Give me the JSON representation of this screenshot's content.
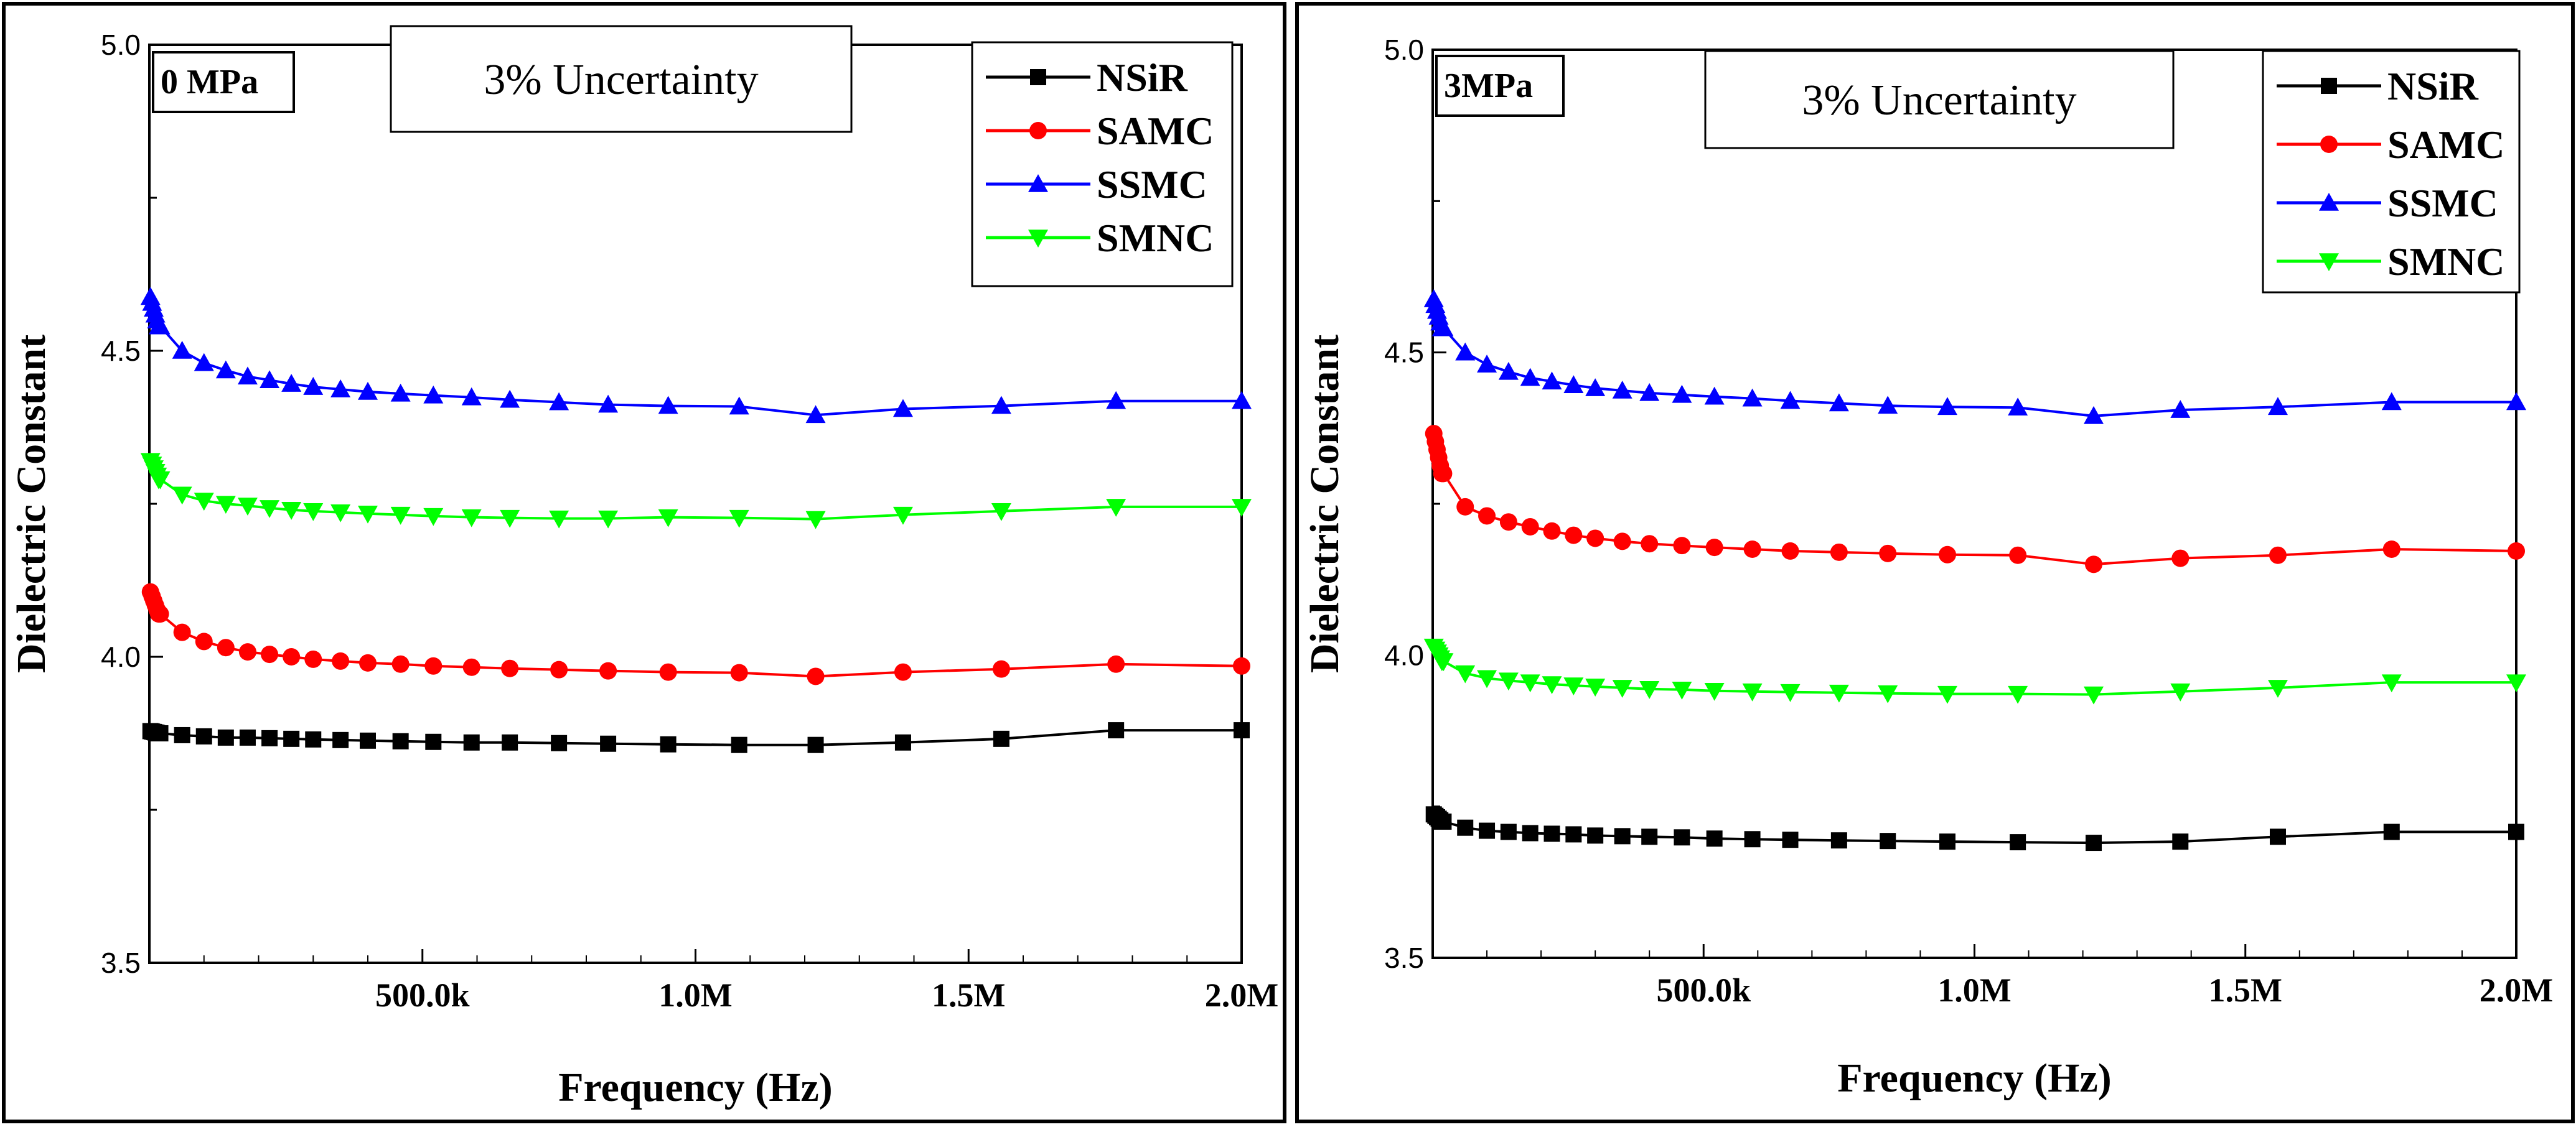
{
  "colors": {
    "NSiR": "#000000",
    "SAMC": "#ff0000",
    "SSMC": "#0000ff",
    "SMNC": "#00ff00"
  },
  "chart_data": [
    {
      "type": "line",
      "title": "0 MPa",
      "annotation": "3% Uncertainty",
      "xlabel": "Frequency (Hz)",
      "ylabel": "Dielectric Constant",
      "xlim": [
        0,
        2000000
      ],
      "ylim": [
        3.5,
        5.0
      ],
      "x_ticks": [
        500000,
        1000000,
        1500000,
        2000000
      ],
      "x_tick_labels": [
        "500.0k",
        "1.0M",
        "1.5M",
        "2.0M"
      ],
      "y_ticks": [
        3.5,
        4.0,
        4.5,
        5.0
      ],
      "y_tick_labels": [
        "3.5",
        "4.0",
        "4.5",
        "5.0"
      ],
      "legend_position": "top-right",
      "x": [
        20000,
        60000,
        100000,
        140000,
        180000,
        220000,
        260000,
        300000,
        350000,
        400000,
        460000,
        520000,
        590000,
        660000,
        750000,
        840000,
        950000,
        1080000,
        1220000,
        1380000,
        1560000,
        1770000,
        2000000
      ],
      "series": [
        {
          "name": "NSiR",
          "marker": "square",
          "values": [
            3.875,
            3.872,
            3.87,
            3.868,
            3.868,
            3.867,
            3.866,
            3.865,
            3.864,
            3.863,
            3.862,
            3.861,
            3.86,
            3.86,
            3.859,
            3.858,
            3.857,
            3.856,
            3.856,
            3.86,
            3.866,
            3.88,
            3.88
          ]
        },
        {
          "name": "SAMC",
          "marker": "circle",
          "values": [
            4.07,
            4.04,
            4.025,
            4.015,
            4.008,
            4.004,
            4.0,
            3.996,
            3.993,
            3.99,
            3.988,
            3.985,
            3.983,
            3.981,
            3.979,
            3.977,
            3.975,
            3.974,
            3.968,
            3.975,
            3.98,
            3.988,
            3.985
          ]
        },
        {
          "name": "SSMC",
          "marker": "triangle-up",
          "values": [
            4.54,
            4.5,
            4.48,
            4.468,
            4.458,
            4.452,
            4.446,
            4.441,
            4.437,
            4.433,
            4.43,
            4.427,
            4.424,
            4.42,
            4.416,
            4.412,
            4.41,
            4.409,
            4.395,
            4.405,
            4.41,
            4.418,
            4.418
          ]
        },
        {
          "name": "SMNC",
          "marker": "triangle-down",
          "values": [
            4.29,
            4.265,
            4.255,
            4.25,
            4.247,
            4.243,
            4.24,
            4.238,
            4.236,
            4.234,
            4.232,
            4.23,
            4.228,
            4.227,
            4.226,
            4.226,
            4.228,
            4.227,
            4.225,
            4.232,
            4.238,
            4.245,
            4.245
          ]
        }
      ]
    },
    {
      "type": "line",
      "title": "3MPa",
      "annotation": "3% Uncertainty",
      "xlabel": "Frequency (Hz)",
      "ylabel": "Dielectric Constant",
      "xlim": [
        0,
        2000000
      ],
      "ylim": [
        3.5,
        5.0
      ],
      "x_ticks": [
        500000,
        1000000,
        1500000,
        2000000
      ],
      "x_tick_labels": [
        "500.0k",
        "1.0M",
        "1.5M",
        "2.0M"
      ],
      "y_ticks": [
        3.5,
        4.0,
        4.5,
        5.0
      ],
      "y_tick_labels": [
        "3.5",
        "4.0",
        "4.5",
        "5.0"
      ],
      "legend_position": "top-right",
      "x": [
        20000,
        60000,
        100000,
        140000,
        180000,
        220000,
        260000,
        300000,
        350000,
        400000,
        460000,
        520000,
        590000,
        660000,
        750000,
        840000,
        950000,
        1080000,
        1220000,
        1380000,
        1560000,
        1770000,
        2000000
      ],
      "series": [
        {
          "name": "NSiR",
          "marker": "square",
          "values": [
            3.725,
            3.715,
            3.71,
            3.708,
            3.706,
            3.705,
            3.704,
            3.702,
            3.701,
            3.7,
            3.699,
            3.697,
            3.696,
            3.695,
            3.694,
            3.693,
            3.692,
            3.691,
            3.69,
            3.692,
            3.7,
            3.708,
            3.708
          ]
        },
        {
          "name": "SAMC",
          "marker": "circle",
          "values": [
            4.3,
            4.245,
            4.23,
            4.22,
            4.212,
            4.205,
            4.198,
            4.193,
            4.188,
            4.184,
            4.181,
            4.178,
            4.175,
            4.172,
            4.17,
            4.168,
            4.166,
            4.165,
            4.15,
            4.16,
            4.165,
            4.175,
            4.172
          ]
        },
        {
          "name": "SSMC",
          "marker": "triangle-up",
          "values": [
            4.54,
            4.5,
            4.48,
            4.468,
            4.458,
            4.452,
            4.446,
            4.441,
            4.437,
            4.433,
            4.43,
            4.427,
            4.424,
            4.42,
            4.416,
            4.412,
            4.41,
            4.409,
            4.395,
            4.405,
            4.41,
            4.418,
            4.418
          ]
        },
        {
          "name": "SMNC",
          "marker": "triangle-down",
          "values": [
            3.99,
            3.97,
            3.962,
            3.958,
            3.955,
            3.952,
            3.95,
            3.948,
            3.946,
            3.944,
            3.943,
            3.941,
            3.94,
            3.939,
            3.938,
            3.937,
            3.936,
            3.936,
            3.935,
            3.94,
            3.946,
            3.955,
            3.955
          ]
        }
      ]
    }
  ]
}
